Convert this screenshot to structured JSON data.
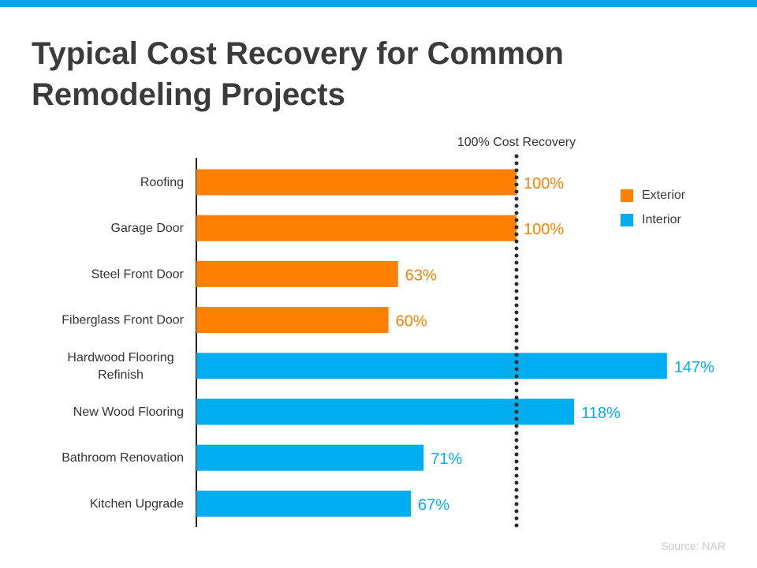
{
  "colors": {
    "top_bar": "#00a6e6",
    "exterior": "#ff7f00",
    "interior": "#00aeef",
    "axis": "#222222",
    "reference_line": "#2b2b2b"
  },
  "title_lines": [
    "Typical Cost Recovery for Common",
    "Remodeling Projects"
  ],
  "source": "Source: NAR",
  "chart_data": {
    "type": "bar",
    "orientation": "horizontal",
    "categories": [
      [
        "Roofing"
      ],
      [
        "Garage Door"
      ],
      [
        "Steel Front Door"
      ],
      [
        "Fiberglass Front Door"
      ],
      [
        "Hardwood Flooring",
        "Refinish"
      ],
      [
        "New Wood Flooring"
      ],
      [
        "Bathroom Renovation"
      ],
      [
        "Kitchen Upgrade"
      ]
    ],
    "values": [
      100,
      100,
      63,
      60,
      147,
      118,
      71,
      67
    ],
    "data_labels": [
      "100%",
      "100%",
      "63%",
      "60%",
      "147%",
      "118%",
      "71%",
      "67%"
    ],
    "groups": [
      "Exterior",
      "Exterior",
      "Exterior",
      "Exterior",
      "Interior",
      "Interior",
      "Interior",
      "Interior"
    ],
    "series": [
      {
        "name": "Exterior",
        "color": "#ff7f00"
      },
      {
        "name": "Interior",
        "color": "#00aeef"
      }
    ],
    "reference_line": {
      "value": 100,
      "label": "100% Cost Recovery",
      "style": "dotted"
    },
    "xlim": [
      0,
      150
    ],
    "legend_position": "right",
    "grid": false
  }
}
